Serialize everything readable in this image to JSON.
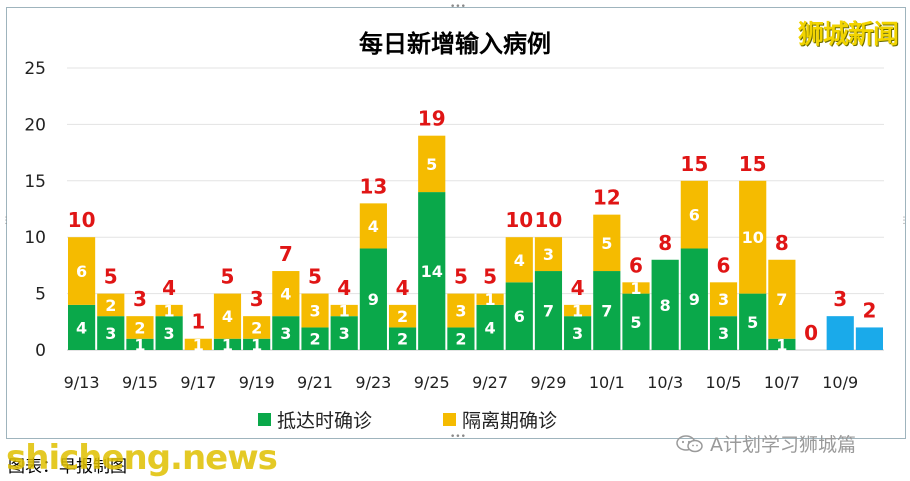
{
  "title": "每日新增输入病例",
  "brand": "狮城新闻",
  "caption": "图表：早报制图",
  "watermark": "shicheng.news",
  "wechat_label": "A计划学习狮城篇",
  "colors": {
    "arrival": "#0aa84a",
    "quarantine": "#f5bb00",
    "total_only": "#1aaaea",
    "total_label": "#e01515",
    "segment_label": "#ffffff",
    "grid": "#e3e3e3"
  },
  "chart_data": {
    "type": "bar",
    "stacked": true,
    "title": "每日新增输入病例",
    "categories": [
      "9/13",
      "9/14",
      "9/15",
      "9/16",
      "9/17",
      "9/18",
      "9/19",
      "9/20",
      "9/21",
      "9/22",
      "9/23",
      "9/24",
      "9/25",
      "9/26",
      "9/27",
      "9/28",
      "9/29",
      "9/30",
      "10/1",
      "10/2",
      "10/3",
      "10/4",
      "10/5",
      "10/6",
      "10/7",
      "10/8",
      "10/9",
      "10/10"
    ],
    "xtick_labels": [
      "9/13",
      "9/15",
      "9/17",
      "9/19",
      "9/21",
      "9/23",
      "9/25",
      "9/27",
      "9/29",
      "10/1",
      "10/3",
      "10/5",
      "10/7",
      "10/9"
    ],
    "series": [
      {
        "name": "抵达时确诊",
        "values": [
          4,
          3,
          1,
          3,
          0,
          1,
          1,
          3,
          2,
          3,
          9,
          2,
          14,
          2,
          4,
          6,
          7,
          3,
          7,
          5,
          8,
          9,
          3,
          5,
          1,
          0,
          null,
          null
        ]
      },
      {
        "name": "隔离期确诊",
        "values": [
          6,
          2,
          2,
          1,
          1,
          4,
          2,
          4,
          3,
          1,
          4,
          2,
          5,
          3,
          1,
          4,
          3,
          1,
          5,
          1,
          0,
          6,
          3,
          10,
          7,
          0,
          null,
          null
        ]
      },
      {
        "name": "",
        "values": [
          null,
          null,
          null,
          null,
          null,
          null,
          null,
          null,
          null,
          null,
          null,
          null,
          null,
          null,
          null,
          null,
          null,
          null,
          null,
          null,
          null,
          null,
          null,
          null,
          null,
          null,
          3,
          2
        ]
      }
    ],
    "totals": [
      10,
      5,
      3,
      4,
      1,
      5,
      3,
      7,
      5,
      4,
      13,
      4,
      19,
      5,
      5,
      10,
      10,
      4,
      12,
      6,
      8,
      15,
      6,
      15,
      8,
      0,
      3,
      2
    ],
    "ylim": [
      0,
      25
    ],
    "yticks": [
      0,
      5,
      10,
      15,
      20,
      25
    ],
    "grid": "horizontal",
    "legend": "bottom"
  }
}
